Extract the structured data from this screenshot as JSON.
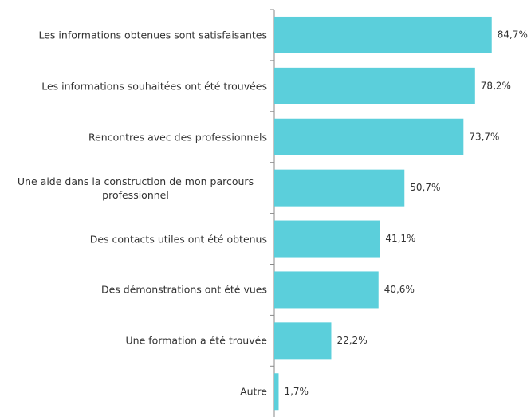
{
  "chart_data": {
    "type": "barh",
    "categories": [
      "Les informations obtenues sont satisfaisantes",
      "Les informations souhaitées ont été trouvées",
      "Rencontres avec des professionnels",
      "Une aide dans la construction de mon parcours professionnel",
      "Des contacts utiles ont été obtenus",
      "Des démonstrations ont été vues",
      "Une formation a été trouvée",
      "Autre"
    ],
    "values": [
      84.7,
      78.2,
      73.7,
      50.7,
      41.1,
      40.6,
      22.2,
      1.7
    ],
    "value_labels": [
      "84,7%",
      "78,2%",
      "73,7%",
      "50,7%",
      "41,1%",
      "40,6%",
      "22,2%",
      "1,7%"
    ],
    "color": "#5bcfdb"
  }
}
